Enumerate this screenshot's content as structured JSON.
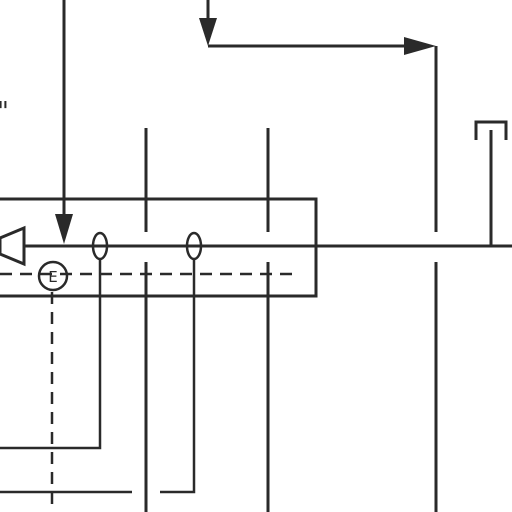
{
  "diagram": {
    "fragment_mark": "\"",
    "e_symbol": {
      "label": "E"
    }
  }
}
